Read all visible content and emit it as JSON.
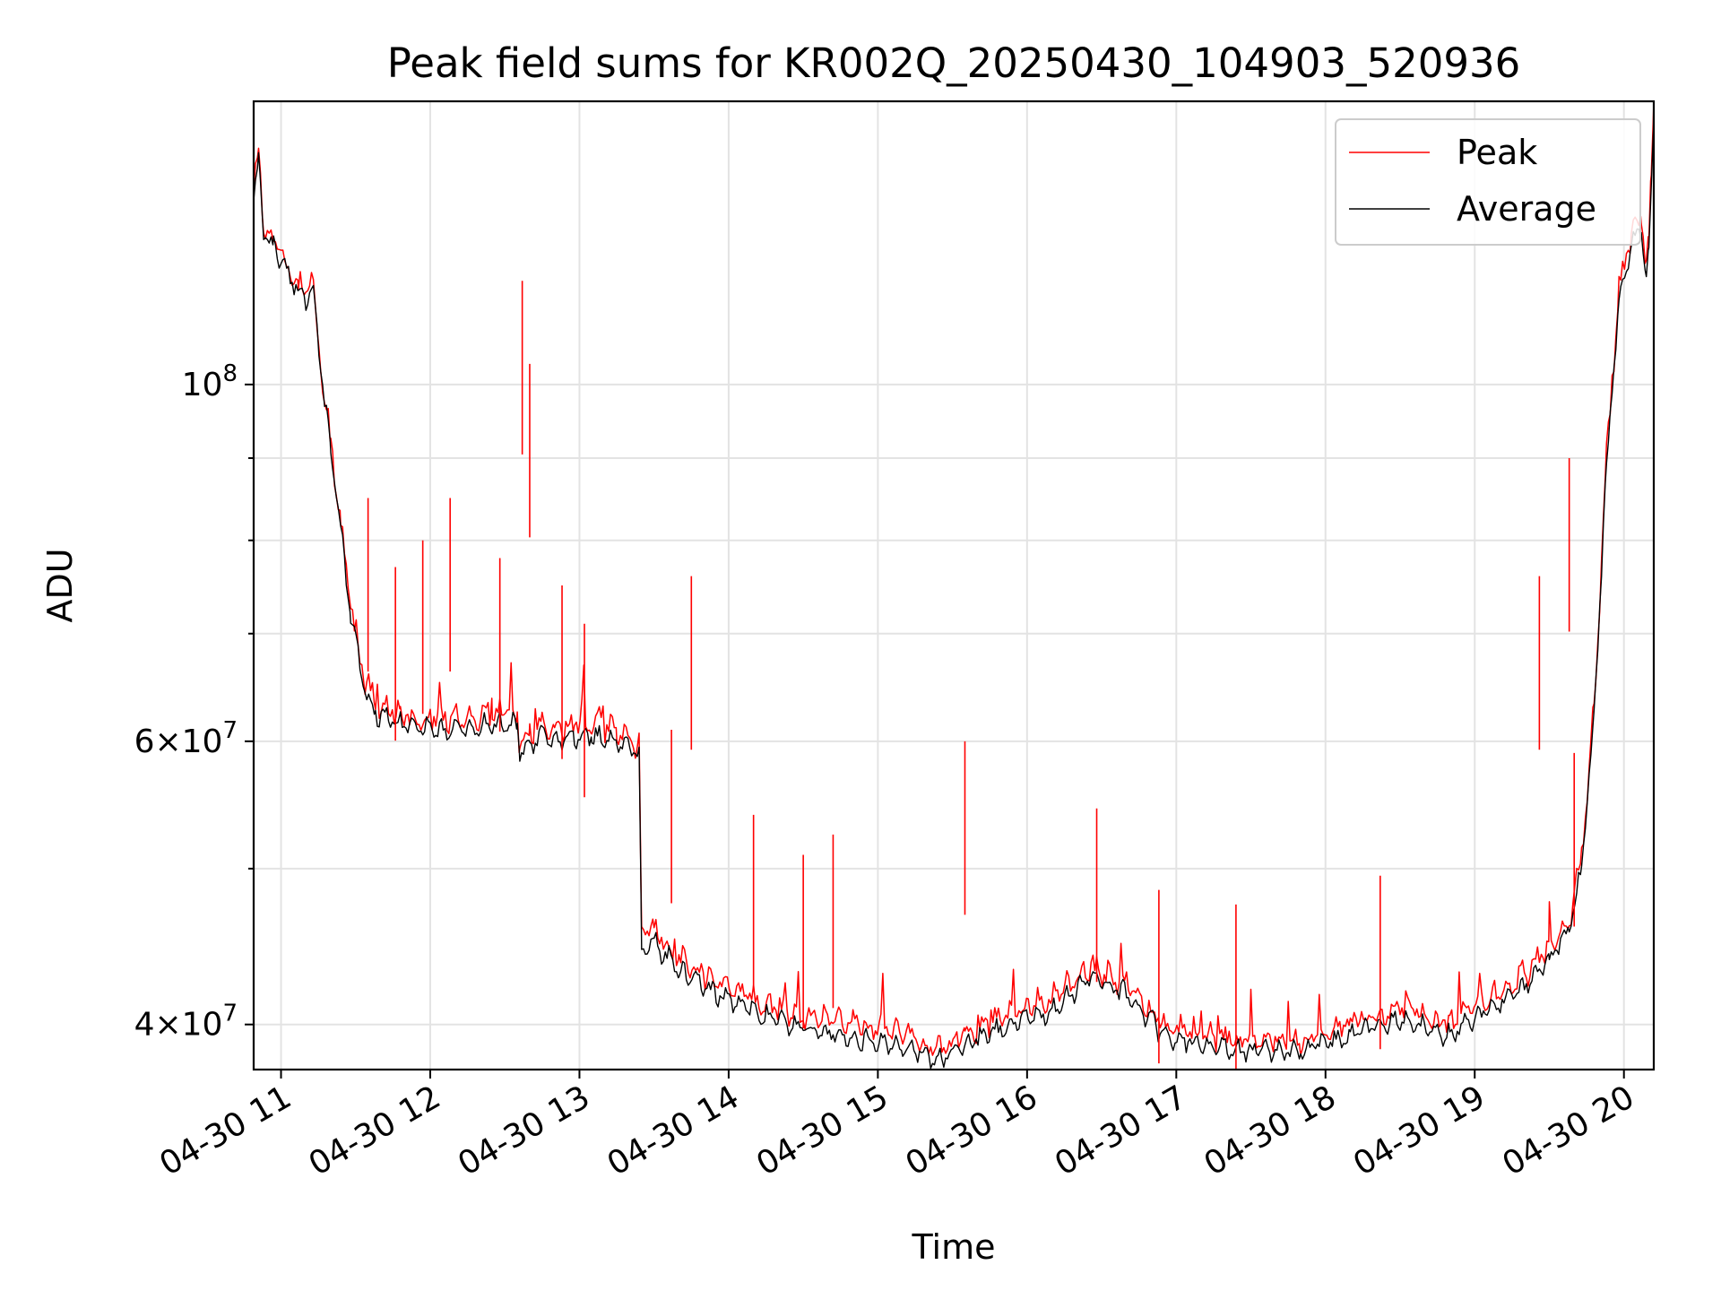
{
  "chart_data": {
    "type": "line",
    "title": "Peak field sums for KR002Q_20250430_104903_520936",
    "xlabel": "Time",
    "ylabel": "ADU",
    "x_scale": "time",
    "y_scale": "log",
    "xlim": [
      "2025-04-30 10:49",
      "2025-04-30 20:12"
    ],
    "ylim": [
      37500000,
      150000000
    ],
    "x_ticks": [
      "04-30 11",
      "04-30 12",
      "04-30 13",
      "04-30 14",
      "04-30 15",
      "04-30 16",
      "04-30 17",
      "04-30 18",
      "04-30 19",
      "04-30 20"
    ],
    "y_ticks": [
      {
        "value": 40000000,
        "mantissa": "4",
        "times": "×",
        "base": "10",
        "exp": "7"
      },
      {
        "value": 60000000,
        "mantissa": "6",
        "times": "×",
        "base": "10",
        "exp": "7"
      },
      {
        "value": 100000000,
        "mantissa": "",
        "times": "",
        "base": "10",
        "exp": "8"
      }
    ],
    "y_minor_ticks": [
      50000000,
      70000000,
      80000000,
      90000000
    ],
    "grid": true,
    "legend_position": "top-right",
    "series": [
      {
        "name": "Peak",
        "color": "#ff0000",
        "x": [
          "2025-04-30 10:49",
          "2025-04-30 10:51",
          "2025-04-30 10:53",
          "2025-04-30 10:57",
          "2025-04-30 11:07",
          "2025-04-30 11:10",
          "2025-04-30 11:13",
          "2025-04-30 11:16",
          "2025-04-30 11:20",
          "2025-04-30 11:24",
          "2025-04-30 11:28",
          "2025-04-30 11:33",
          "2025-04-30 11:38",
          "2025-04-30 11:48",
          "2025-04-30 12:00",
          "2025-04-30 12:15",
          "2025-04-30 12:25",
          "2025-04-30 12:35",
          "2025-04-30 12:36",
          "2025-04-30 12:40",
          "2025-04-30 12:45",
          "2025-04-30 12:50",
          "2025-04-30 12:58",
          "2025-04-30 13:05",
          "2025-04-30 13:15",
          "2025-04-30 13:24",
          "2025-04-30 13:25",
          "2025-04-30 13:30",
          "2025-04-30 13:40",
          "2025-04-30 13:55",
          "2025-04-30 14:10",
          "2025-04-30 14:30",
          "2025-04-30 14:50",
          "2025-04-30 15:10",
          "2025-04-30 15:25",
          "2025-04-30 15:35",
          "2025-04-30 15:50",
          "2025-04-30 16:10",
          "2025-04-30 16:25",
          "2025-04-30 16:40",
          "2025-04-30 16:55",
          "2025-04-30 17:10",
          "2025-04-30 17:30",
          "2025-04-30 17:50",
          "2025-04-30 18:10",
          "2025-04-30 18:30",
          "2025-04-30 18:50",
          "2025-04-30 19:05",
          "2025-04-30 19:20",
          "2025-04-30 19:30",
          "2025-04-30 19:38",
          "2025-04-30 19:43",
          "2025-04-30 19:48",
          "2025-04-30 19:53",
          "2025-04-30 19:58",
          "2025-04-30 20:03",
          "2025-04-30 20:07",
          "2025-04-30 20:09",
          "2025-04-30 20:10",
          "2025-04-30 20:11",
          "2025-04-30 20:12"
        ],
        "y": [
          132000000,
          140000000,
          125000000,
          123000000,
          115000000,
          114000000,
          116000000,
          103000000,
          92000000,
          82000000,
          73000000,
          66000000,
          63500000,
          62500000,
          62000000,
          62000000,
          62500000,
          62500000,
          59500000,
          60500000,
          61500000,
          61000000,
          61500000,
          61500000,
          61000000,
          59500000,
          45500000,
          46000000,
          44000000,
          42500000,
          41500000,
          40500000,
          40000000,
          39500000,
          38500000,
          39500000,
          40500000,
          41500000,
          43500000,
          42500000,
          40000000,
          39500000,
          39000000,
          39000000,
          40000000,
          41000000,
          40000000,
          41500000,
          43000000,
          44500000,
          46500000,
          51000000,
          63000000,
          90000000,
          115000000,
          124000000,
          127000000,
          119000000,
          122000000,
          135000000,
          150000000
        ]
      },
      {
        "name": "Average",
        "color": "#000000",
        "x": [
          "2025-04-30 10:49",
          "2025-04-30 10:51",
          "2025-04-30 10:53",
          "2025-04-30 10:57",
          "2025-04-30 11:07",
          "2025-04-30 11:10",
          "2025-04-30 11:13",
          "2025-04-30 11:16",
          "2025-04-30 11:20",
          "2025-04-30 11:24",
          "2025-04-30 11:28",
          "2025-04-30 11:33",
          "2025-04-30 11:38",
          "2025-04-30 11:48",
          "2025-04-30 12:00",
          "2025-04-30 12:15",
          "2025-04-30 12:25",
          "2025-04-30 12:35",
          "2025-04-30 12:36",
          "2025-04-30 12:40",
          "2025-04-30 12:45",
          "2025-04-30 12:50",
          "2025-04-30 12:58",
          "2025-04-30 13:05",
          "2025-04-30 13:15",
          "2025-04-30 13:24",
          "2025-04-30 13:25",
          "2025-04-30 13:30",
          "2025-04-30 13:40",
          "2025-04-30 13:55",
          "2025-04-30 14:10",
          "2025-04-30 14:30",
          "2025-04-30 14:50",
          "2025-04-30 15:10",
          "2025-04-30 15:25",
          "2025-04-30 15:35",
          "2025-04-30 15:50",
          "2025-04-30 16:10",
          "2025-04-30 16:25",
          "2025-04-30 16:40",
          "2025-04-30 16:55",
          "2025-04-30 17:10",
          "2025-04-30 17:30",
          "2025-04-30 17:50",
          "2025-04-30 18:10",
          "2025-04-30 18:30",
          "2025-04-30 18:50",
          "2025-04-30 19:05",
          "2025-04-30 19:20",
          "2025-04-30 19:30",
          "2025-04-30 19:38",
          "2025-04-30 19:43",
          "2025-04-30 19:48",
          "2025-04-30 19:53",
          "2025-04-30 19:58",
          "2025-04-30 20:03",
          "2025-04-30 20:07",
          "2025-04-30 20:09",
          "2025-04-30 20:10",
          "2025-04-30 20:11",
          "2025-04-30 20:12"
        ],
        "y": [
          130000000,
          138000000,
          124000000,
          122000000,
          114000000,
          113000000,
          115000000,
          102000000,
          91000000,
          81000000,
          72000000,
          65000000,
          62500000,
          61500000,
          61000000,
          61000000,
          61500000,
          61500000,
          58800000,
          59800000,
          60500000,
          60000000,
          60500000,
          60500000,
          60000000,
          58800000,
          44500000,
          45000000,
          43200000,
          41800000,
          40800000,
          39800000,
          39300000,
          38800000,
          38000000,
          38900000,
          39800000,
          40800000,
          42800000,
          41800000,
          39400000,
          38900000,
          38500000,
          38500000,
          39400000,
          40300000,
          39400000,
          40800000,
          42300000,
          43800000,
          45800000,
          50000000,
          62000000,
          89000000,
          113000000,
          122000000,
          125000000,
          117000000,
          120000000,
          132000000,
          145000000
        ]
      }
    ],
    "annotations": [
      {
        "series": "Peak",
        "x": "2025-04-30 12:37",
        "y": 116000000
      },
      {
        "series": "Peak",
        "x": "2025-04-30 12:40",
        "y": 103000000
      },
      {
        "series": "Peak",
        "x": "2025-04-30 12:08",
        "y": 85000000
      },
      {
        "series": "Peak",
        "x": "2025-04-30 11:57",
        "y": 80000000
      },
      {
        "series": "Peak",
        "x": "2025-04-30 12:28",
        "y": 78000000
      },
      {
        "series": "Peak",
        "x": "2025-04-30 11:35",
        "y": 85000000
      },
      {
        "series": "Peak",
        "x": "2025-04-30 11:46",
        "y": 77000000
      },
      {
        "series": "Peak",
        "x": "2025-04-30 12:53",
        "y": 75000000
      },
      {
        "series": "Peak",
        "x": "2025-04-30 13:02",
        "y": 71000000
      },
      {
        "series": "Peak",
        "x": "2025-04-30 13:45",
        "y": 76000000
      },
      {
        "series": "Peak",
        "x": "2025-04-30 13:37",
        "y": 61000000
      },
      {
        "series": "Peak",
        "x": "2025-04-30 14:10",
        "y": 54000000
      },
      {
        "series": "Peak",
        "x": "2025-04-30 14:30",
        "y": 51000000
      },
      {
        "series": "Peak",
        "x": "2025-04-30 14:42",
        "y": 52500000
      },
      {
        "series": "Peak",
        "x": "2025-04-30 15:35",
        "y": 60000000
      },
      {
        "series": "Peak",
        "x": "2025-04-30 16:28",
        "y": 54500000
      },
      {
        "series": "Peak",
        "x": "2025-04-30 16:53",
        "y": 48500000
      },
      {
        "series": "Peak",
        "x": "2025-04-30 17:24",
        "y": 47500000
      },
      {
        "series": "Peak",
        "x": "2025-04-30 18:22",
        "y": 49500000
      },
      {
        "series": "Peak",
        "x": "2025-04-30 19:26",
        "y": 76000000
      },
      {
        "series": "Peak",
        "x": "2025-04-30 19:38",
        "y": 90000000
      },
      {
        "series": "Peak",
        "x": "2025-04-30 19:40",
        "y": 59000000
      }
    ]
  }
}
